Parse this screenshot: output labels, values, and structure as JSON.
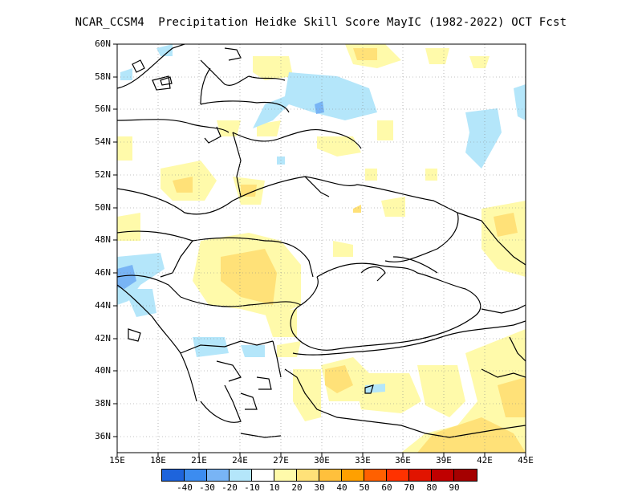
{
  "title": "NCAR_CCSM4  Precipitation Heidke Skill Score MayIC (1982-2022) OCT Fcst",
  "y_axis_labels": [
    "60N",
    "58N",
    "56N",
    "54N",
    "52N",
    "50N",
    "48N",
    "46N",
    "44N",
    "42N",
    "40N",
    "38N",
    "36N"
  ],
  "x_axis_labels": [
    "15E",
    "18E",
    "21E",
    "24E",
    "27E",
    "30E",
    "33E",
    "36E",
    "39E",
    "42E",
    "45E"
  ],
  "colorbar": {
    "colors": [
      "#1e64dc",
      "#3c8cf0",
      "#78b4f5",
      "#b4e6fa",
      "#ffffff",
      "#fffaaa",
      "#ffe178",
      "#ffc03c",
      "#ffa000",
      "#ff6000",
      "#ff3200",
      "#e11400",
      "#c00000",
      "#a50000"
    ],
    "labels": [
      "-40",
      "-30",
      "-20",
      "-10",
      "10",
      "20",
      "30",
      "40",
      "50",
      "60",
      "70",
      "80",
      "90"
    ]
  },
  "map_data": {
    "region": "Eastern Europe / Black Sea",
    "lon_range": [
      15,
      45
    ],
    "lat_range": [
      35,
      60
    ],
    "grid": true
  }
}
